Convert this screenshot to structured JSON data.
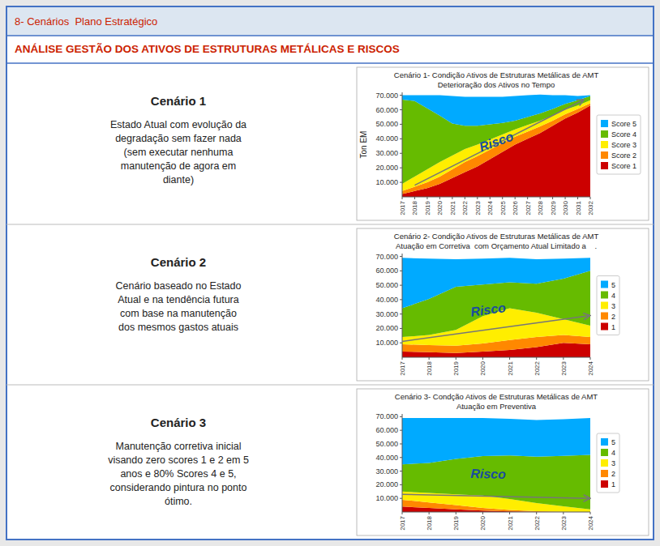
{
  "title": "8- Cenários  Plano Estratégico",
  "subtitle": "ANÁLISE GESTÃO DOS ATIVOS DE ESTRUTURAS METÁLICAS E RISCOS",
  "chart_data": [
    {
      "type": "area",
      "stacked": true,
      "title": "Cenário 1- Condição Ativos de Estruturas Metálicas de AMT",
      "subtitle": "Deterioração dos Ativos no Tempo",
      "ylabel": "Ton EM",
      "categories": [
        "2017",
        "2018",
        "2019",
        "2020",
        "2021",
        "2022",
        "2023",
        "2024",
        "2025",
        "2026",
        "2027",
        "2028",
        "2029",
        "2030",
        "2031",
        "2032"
      ],
      "series": [
        {
          "name": "Score 1",
          "color": "#cc0000",
          "values": [
            2000,
            4000,
            6000,
            9000,
            13000,
            17000,
            21000,
            26000,
            31000,
            36000,
            40000,
            44000,
            49000,
            54000,
            58000,
            63000
          ]
        },
        {
          "name": "Score 2",
          "color": "#ff8800",
          "values": [
            2000,
            3000,
            4000,
            5000,
            6000,
            7000,
            7000,
            6500,
            6000,
            5500,
            5000,
            4500,
            3500,
            3000,
            2500,
            1500
          ]
        },
        {
          "name": "Score 3",
          "color": "#ffee00",
          "values": [
            5000,
            7000,
            9000,
            10000,
            9500,
            9000,
            8000,
            7000,
            6000,
            5000,
            4500,
            4000,
            3500,
            3000,
            2500,
            2000
          ]
        },
        {
          "name": "Score 4",
          "color": "#66bb00",
          "values": [
            58000,
            52000,
            42000,
            32000,
            22000,
            16000,
            13000,
            10500,
            8000,
            6000,
            5500,
            5000,
            4500,
            4000,
            3500,
            3000
          ]
        },
        {
          "name": "Score 5",
          "color": "#00aaff",
          "values": [
            3000,
            4000,
            9000,
            14000,
            19000,
            20000,
            20000,
            19000,
            18000,
            17000,
            15000,
            13000,
            9500,
            6000,
            3000,
            500
          ]
        }
      ],
      "ylim": [
        0,
        72000
      ],
      "yticks": [
        {
          "value": 10000,
          "label": "10.000"
        },
        {
          "value": 20000,
          "label": "20.000"
        },
        {
          "value": 30000,
          "label": "30.000"
        },
        {
          "value": 40000,
          "label": "40.000"
        },
        {
          "value": 50000,
          "label": "50.000"
        },
        {
          "value": 60000,
          "label": "60.000"
        },
        {
          "value": 70000,
          "label": "70.000"
        }
      ],
      "grid": false,
      "legend": "right",
      "annotations": [
        {
          "text": "Cenário 1"
        },
        {
          "text": "Estado Atual com evolução da\ndegradação sem fazer nada\n(sem executar nenhuma\nmanutenção de agora em\ndiante)"
        },
        {
          "text": "Risco",
          "x": 7.5,
          "y": 38000,
          "color": "#1a4d9e"
        },
        {
          "x": 1,
          "y": 8000,
          "x_end": 14.5,
          "y_end": 67000,
          "color": "#777777"
        }
      ]
    },
    {
      "type": "area",
      "stacked": true,
      "title": "Cenário 2- Condição Ativos de Estruturas Metálicas de AMT",
      "subtitle": "Atuação em Corretiva  com Orçamento Atual Limitado a    .",
      "categories": [
        "2017",
        "2018",
        "2019",
        "2020",
        "2021",
        "2022",
        "2023",
        "2024"
      ],
      "series": [
        {
          "name": "1",
          "color": "#cc0000",
          "values": [
            4000,
            3500,
            3000,
            4000,
            5000,
            7000,
            10000,
            9000
          ]
        },
        {
          "name": "2",
          "color": "#ff8800",
          "values": [
            5000,
            5000,
            5000,
            5500,
            7000,
            7000,
            5500,
            5000
          ]
        },
        {
          "name": "3",
          "color": "#ffee00",
          "values": [
            5000,
            7000,
            11000,
            19000,
            22000,
            17000,
            11000,
            8000
          ]
        },
        {
          "name": "4",
          "color": "#66bb00",
          "values": [
            20000,
            25000,
            30000,
            22000,
            18000,
            20000,
            28000,
            38000
          ]
        },
        {
          "name": "5",
          "color": "#00aaff",
          "values": [
            35000,
            28000,
            19000,
            18000,
            17000,
            17000,
            14000,
            9000
          ]
        }
      ],
      "ylim": [
        0,
        72000
      ],
      "yticks": [
        {
          "value": 10000,
          "label": "10.000"
        },
        {
          "value": 20000,
          "label": "20.000"
        },
        {
          "value": 30000,
          "label": "30.000"
        },
        {
          "value": 40000,
          "label": "40.000"
        },
        {
          "value": 50000,
          "label": "50.000"
        },
        {
          "value": 60000,
          "label": "60.000"
        },
        {
          "value": 70000,
          "label": "70.000"
        }
      ],
      "grid": false,
      "legend": "right",
      "annotations": [
        {
          "text": "Cenário 2"
        },
        {
          "text": "Cenário baseado no Estado\nAtual e na tendência futura\ncom base na manutenção\ndos mesmos gastos atuais"
        },
        {
          "text": "Risco",
          "x": 3.2,
          "y": 33000,
          "color": "#1a4d9e"
        },
        {
          "x": 0,
          "y": 11000,
          "x_end": 7,
          "y_end": 29000,
          "color": "#777777"
        }
      ]
    },
    {
      "type": "area",
      "stacked": true,
      "title": "Cenário 3- Condção Ativos de Estruturas Metálicas de AMT",
      "subtitle": "Atuação em Preventiva",
      "categories": [
        "2017",
        "2018",
        "2019",
        "2020",
        "2021",
        "2022",
        "2023",
        "2024"
      ],
      "series": [
        {
          "name": "1",
          "color": "#cc0000",
          "values": [
            4000,
            3000,
            2000,
            1000,
            500,
            200,
            50,
            0
          ]
        },
        {
          "name": "2",
          "color": "#ff8800",
          "values": [
            5000,
            4000,
            3000,
            2000,
            1000,
            400,
            100,
            0
          ]
        },
        {
          "name": "3",
          "color": "#ffee00",
          "values": [
            6000,
            7000,
            8000,
            9000,
            8000,
            6000,
            4000,
            2000
          ]
        },
        {
          "name": "4",
          "color": "#66bb00",
          "values": [
            20000,
            22000,
            26000,
            29000,
            32000,
            34000,
            37000,
            40000
          ]
        },
        {
          "name": "5",
          "color": "#00aaff",
          "values": [
            34000,
            33000,
            30000,
            28000,
            27000,
            27000,
            27000,
            27000
          ]
        }
      ],
      "ylim": [
        0,
        72000
      ],
      "yticks": [
        {
          "value": 10000,
          "label": "10.000"
        },
        {
          "value": 20000,
          "label": "20.000"
        },
        {
          "value": 30000,
          "label": "30.000"
        },
        {
          "value": 40000,
          "label": "40.000"
        },
        {
          "value": 50000,
          "label": "50.000"
        },
        {
          "value": 60000,
          "label": "60.000"
        },
        {
          "value": 70000,
          "label": "70.000"
        }
      ],
      "grid": false,
      "legend": "right",
      "annotations": [
        {
          "text": "Cenário 3"
        },
        {
          "text": "Manutenção corretiva inicial\nvisando zero scores 1 e 2 em 5\nanos e 80% Scores 4 e 5,\nconsiderando pintura no ponto\nótimo."
        },
        {
          "text": "Risco",
          "x": 3.2,
          "y": 28000,
          "color": "#1a4d9e"
        },
        {
          "x": 0,
          "y": 13000,
          "x_end": 7,
          "y_end": 10000,
          "color": "#777777"
        }
      ]
    }
  ]
}
